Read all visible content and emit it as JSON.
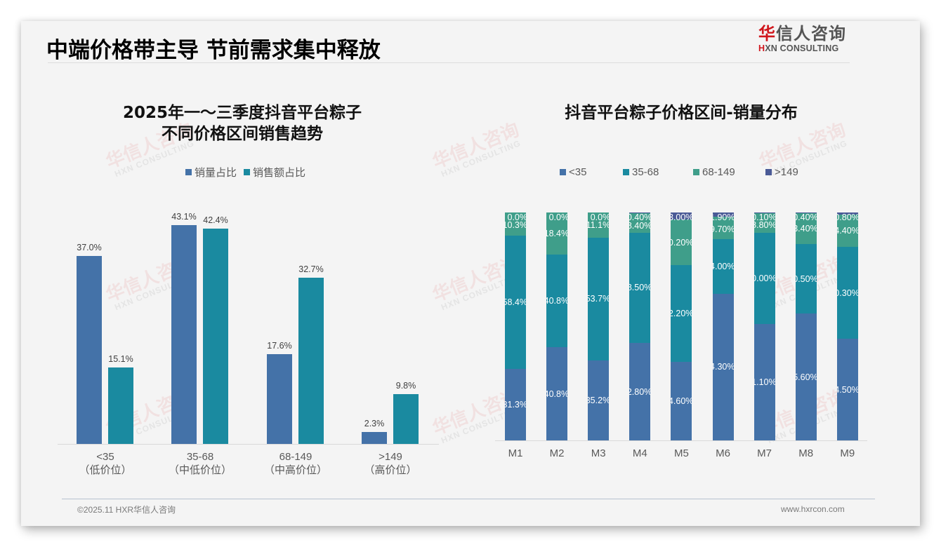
{
  "page": {
    "title": "中端价格带主导 节前需求集中释放",
    "logo": {
      "cn_red": "华",
      "cn_rest": "信人咨询",
      "en_red": "H",
      "en_rest": "XN CONSULTING"
    },
    "watermark": {
      "cn": "华信人咨询",
      "en": "HXN CONSULTING"
    },
    "footer": {
      "left": "©2025.11 HXR华信人咨询",
      "right": "www.hxrcon.com"
    }
  },
  "colors": {
    "lt35": "#4472a8",
    "c35_68": "#1a8aa0",
    "c68_149": "#3f9e8a",
    "gt149": "#4a5a96",
    "sales_volume": "#4472a8",
    "sales_amount": "#1a8aa0"
  },
  "left_chart": {
    "title_line1": "2025年一～三季度抖音平台粽子",
    "title_line2": "不同价格区间销售趋势",
    "legend": [
      "销量占比",
      "销售额占比"
    ],
    "categories": [
      {
        "range": "<35",
        "tier": "（低价位）",
        "volume": "37.0%",
        "amount": "15.1%"
      },
      {
        "range": "35-68",
        "tier": "（中低价位）",
        "volume": "43.1%",
        "amount": "42.4%"
      },
      {
        "range": "68-149",
        "tier": "（中高价位）",
        "volume": "17.6%",
        "amount": "32.7%"
      },
      {
        "range": ">149",
        "tier": "（高价位）",
        "volume": "2.3%",
        "amount": "9.8%"
      }
    ]
  },
  "right_chart": {
    "title": "抖音平台粽子价格区间-销量分布",
    "legend": [
      "<35",
      "35-68",
      "68-149",
      ">149"
    ],
    "months": [
      {
        "m": "M1",
        "labels": [
          "31.3%",
          "58.4%",
          "10.3%",
          "0.0%"
        ]
      },
      {
        "m": "M2",
        "labels": [
          "40.8%",
          "40.8%",
          "18.4%",
          "0.0%"
        ]
      },
      {
        "m": "M3",
        "labels": [
          "35.2%",
          "53.7%",
          "11.1%",
          "0.0%"
        ]
      },
      {
        "m": "M4",
        "labels": [
          "42.80%",
          "48.50%",
          "8.40%",
          "0.40%"
        ]
      },
      {
        "m": "M5",
        "labels": [
          "34.60%",
          "42.20%",
          "20.20%",
          "3.00%"
        ]
      },
      {
        "m": "M6",
        "labels": [
          "64.30%",
          "24.00%",
          "9.70%",
          "1.90%"
        ]
      },
      {
        "m": "M7",
        "labels": [
          "51.10%",
          "40.00%",
          "8.80%",
          "0.10%"
        ]
      },
      {
        "m": "M8",
        "labels": [
          "55.60%",
          "30.50%",
          "13.40%",
          "0.40%"
        ]
      },
      {
        "m": "M9",
        "labels": [
          "44.50%",
          "40.30%",
          "14.40%",
          "0.80%"
        ]
      }
    ]
  },
  "chart_data": [
    {
      "type": "bar",
      "title": "2025年一～三季度抖音平台粽子不同价格区间销售趋势",
      "categories": [
        "<35（低价位）",
        "35-68（中低价位）",
        "68-149（中高价位）",
        ">149（高价位）"
      ],
      "series": [
        {
          "name": "销量占比",
          "values": [
            37.0,
            43.1,
            17.6,
            2.3
          ]
        },
        {
          "name": "销售额占比",
          "values": [
            15.1,
            42.4,
            32.7,
            9.8
          ]
        }
      ],
      "xlabel": "",
      "ylabel": "",
      "ylim": [
        0,
        50
      ],
      "grid": false,
      "legend_position": "top",
      "unit": "%"
    },
    {
      "type": "bar",
      "stacked": true,
      "title": "抖音平台粽子价格区间-销量分布",
      "categories": [
        "M1",
        "M2",
        "M3",
        "M4",
        "M5",
        "M6",
        "M7",
        "M8",
        "M9"
      ],
      "series": [
        {
          "name": "<35",
          "values": [
            31.3,
            40.8,
            35.2,
            42.8,
            34.6,
            64.3,
            51.1,
            55.6,
            44.5
          ]
        },
        {
          "name": "35-68",
          "values": [
            58.4,
            40.8,
            53.7,
            48.5,
            42.2,
            24.0,
            40.0,
            30.5,
            40.3
          ]
        },
        {
          "name": "68-149",
          "values": [
            10.3,
            18.4,
            11.1,
            8.4,
            20.2,
            9.7,
            8.8,
            13.4,
            14.4
          ]
        },
        {
          "name": ">149",
          "values": [
            0.0,
            0.0,
            0.0,
            0.4,
            3.0,
            1.9,
            0.1,
            0.4,
            0.8
          ]
        }
      ],
      "xlabel": "",
      "ylabel": "",
      "ylim": [
        0,
        100
      ],
      "grid": false,
      "legend_position": "top",
      "unit": "%"
    }
  ]
}
